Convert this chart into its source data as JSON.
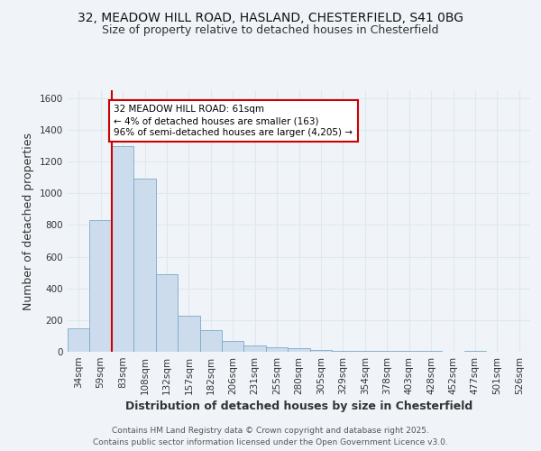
{
  "title_line1": "32, MEADOW HILL ROAD, HASLAND, CHESTERFIELD, S41 0BG",
  "title_line2": "Size of property relative to detached houses in Chesterfield",
  "xlabel": "Distribution of detached houses by size in Chesterfield",
  "ylabel": "Number of detached properties",
  "categories": [
    "34sqm",
    "59sqm",
    "83sqm",
    "108sqm",
    "132sqm",
    "157sqm",
    "182sqm",
    "206sqm",
    "231sqm",
    "255sqm",
    "280sqm",
    "305sqm",
    "329sqm",
    "354sqm",
    "378sqm",
    "403sqm",
    "428sqm",
    "452sqm",
    "477sqm",
    "501sqm",
    "526sqm"
  ],
  "values": [
    150,
    830,
    1300,
    1090,
    490,
    230,
    135,
    70,
    42,
    28,
    20,
    10,
    6,
    5,
    5,
    4,
    4,
    2,
    4,
    2,
    0
  ],
  "bar_color": "#ccdcec",
  "bar_edge_color": "#7aaac8",
  "vline_x": 1.5,
  "annotation_text": "32 MEADOW HILL ROAD: 61sqm\n← 4% of detached houses are smaller (163)\n96% of semi-detached houses are larger (4,205) →",
  "annotation_box_color": "#ffffff",
  "annotation_box_edge_color": "#cc0000",
  "vline_color": "#cc0000",
  "ylim": [
    0,
    1650
  ],
  "yticks": [
    0,
    200,
    400,
    600,
    800,
    1000,
    1200,
    1400,
    1600
  ],
  "footer_line1": "Contains HM Land Registry data © Crown copyright and database right 2025.",
  "footer_line2": "Contains public sector information licensed under the Open Government Licence v3.0.",
  "background_color": "#f0f4f8",
  "grid_color": "#dde8f0",
  "title_fontsize": 10,
  "subtitle_fontsize": 9,
  "axis_label_fontsize": 9,
  "tick_fontsize": 7.5,
  "footer_fontsize": 6.5
}
